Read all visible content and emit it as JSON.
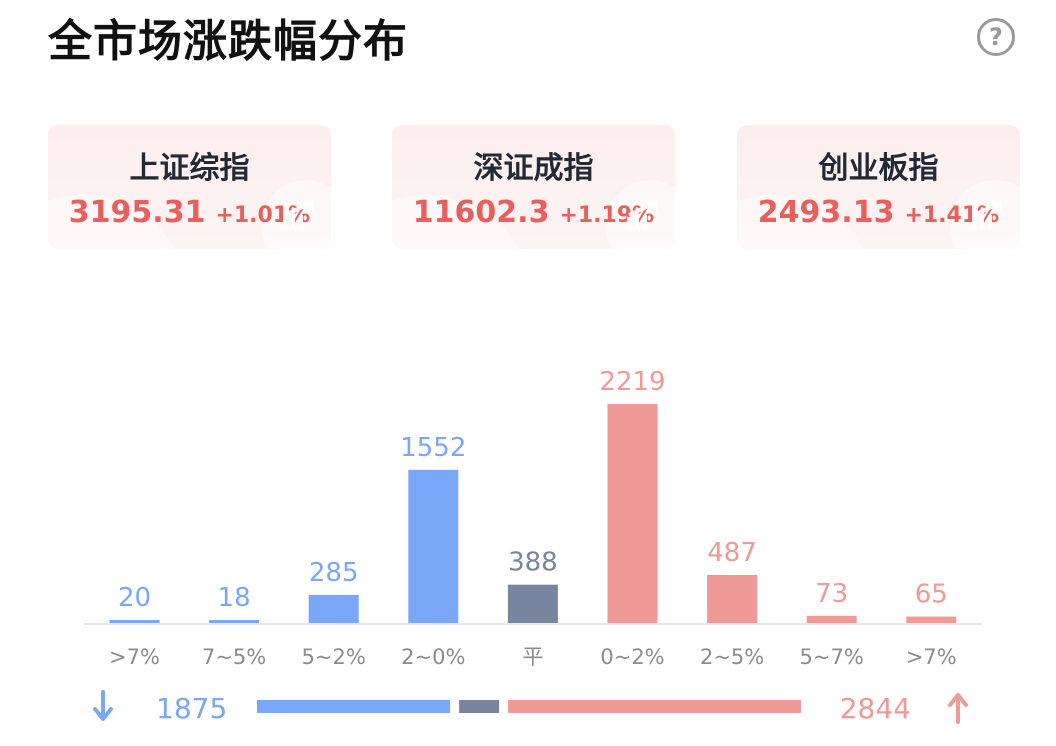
{
  "header": {
    "title": "全市场涨跌幅分布",
    "help_glyph": "?"
  },
  "indices": [
    {
      "name": "上证综指",
      "value": "3195.31",
      "change": "+1.01%"
    },
    {
      "name": "深证成指",
      "value": "11602.3",
      "change": "+1.19%"
    },
    {
      "name": "创业板指",
      "value": "2493.13",
      "change": "+1.41%"
    }
  ],
  "colors": {
    "down": "#7aa7f8",
    "flat": "#79849f",
    "up": "#ef9a96",
    "baseline": "#e8e8e8"
  },
  "chart_data": {
    "type": "bar",
    "categories": [
      ">7%",
      "7~5%",
      "5~2%",
      "2~0%",
      "平",
      "0~2%",
      "2~5%",
      "5~7%",
      ">7%"
    ],
    "values": [
      20,
      18,
      285,
      1552,
      388,
      2219,
      487,
      73,
      65
    ],
    "groups": [
      "down",
      "down",
      "down",
      "down",
      "flat",
      "up",
      "up",
      "up",
      "up"
    ],
    "legend": "none",
    "grid": false
  },
  "summary": {
    "down_count": "1875",
    "up_count": "2844",
    "flat_count": 388,
    "down_icon": "arrow-down-icon",
    "up_icon": "arrow-up-icon"
  }
}
